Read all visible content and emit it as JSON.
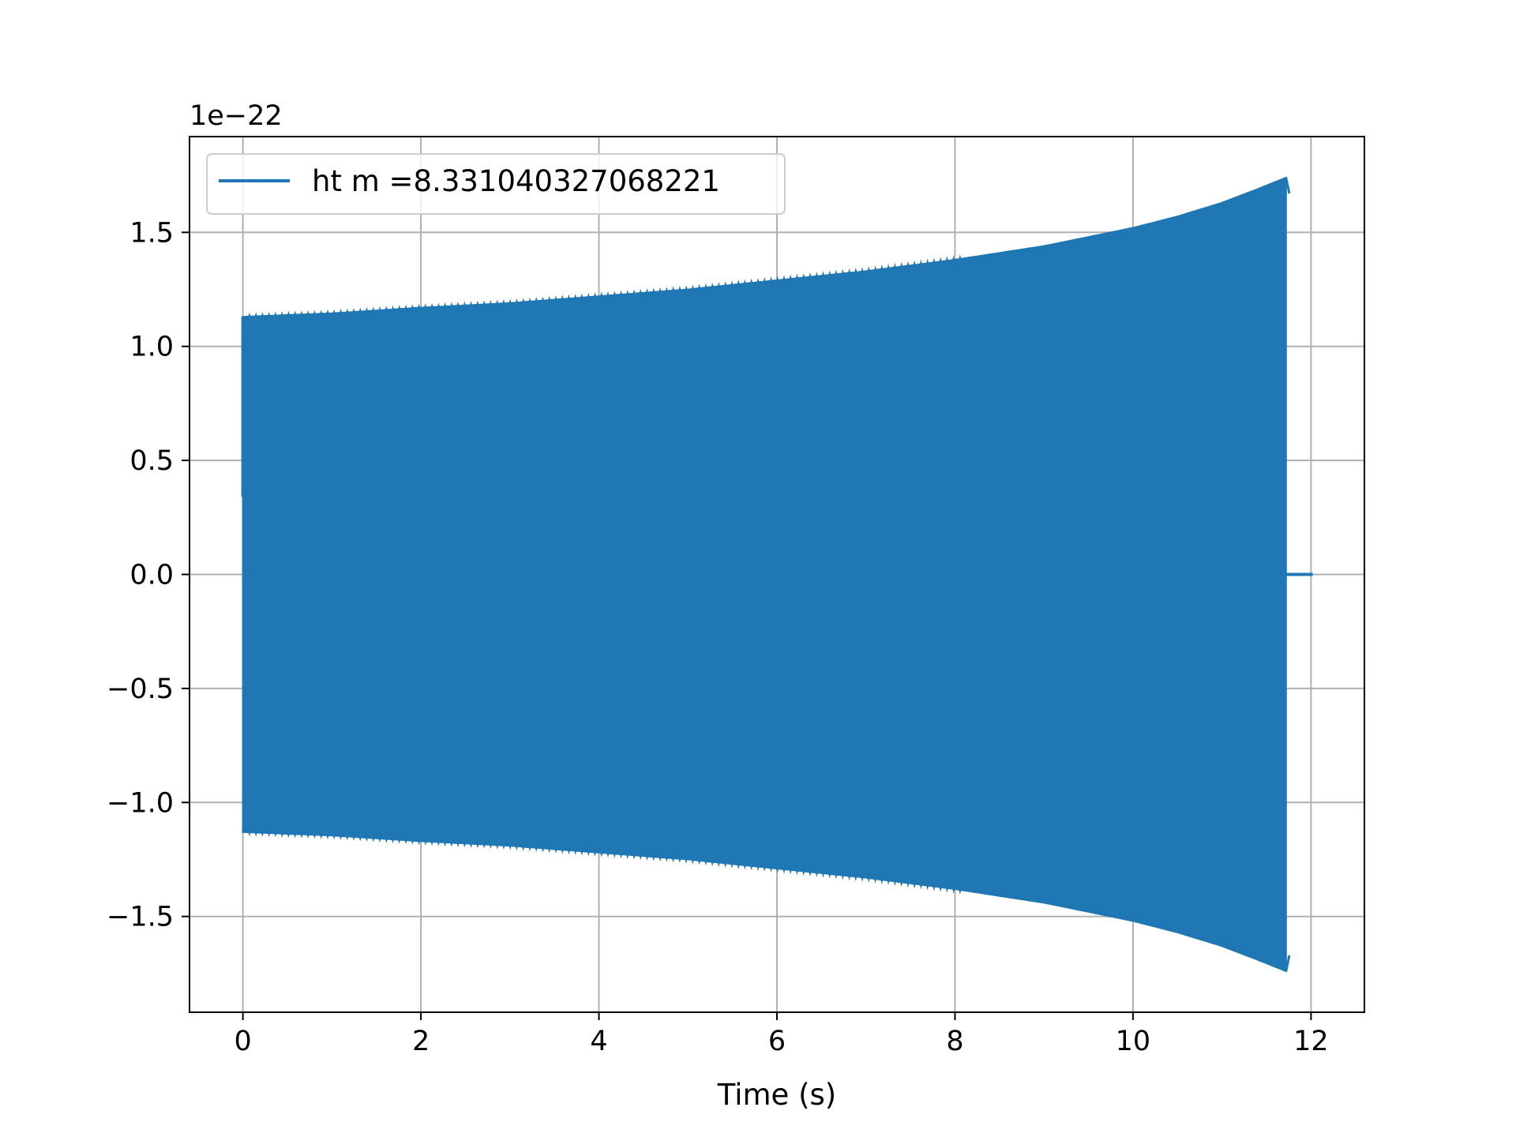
{
  "chart_data": {
    "type": "line",
    "title": "",
    "xlabel": "Time (s)",
    "ylabel": "",
    "offset_text": "1e−22",
    "xlim": [
      -0.6,
      12.6
    ],
    "ylim": [
      -1.92,
      1.92
    ],
    "xticks": [
      0,
      2,
      4,
      6,
      8,
      10,
      12
    ],
    "xtick_labels": [
      "0",
      "2",
      "4",
      "6",
      "8",
      "10",
      "12"
    ],
    "yticks": [
      -1.5,
      -1.0,
      -0.5,
      0.0,
      0.5,
      1.0,
      1.5
    ],
    "ytick_labels": [
      "−1.5",
      "−1.0",
      "−0.5",
      "0.0",
      "0.5",
      "1.0",
      "1.5"
    ],
    "grid": true,
    "legend_position": "upper-left",
    "color": "#1f77b4",
    "series": [
      {
        "name": "ht m =8.331040327068221",
        "description": "oscillating chirp; amplitude envelope (units of 1e-22)",
        "envelope_x": [
          0.0,
          1,
          2,
          3,
          4,
          5,
          6,
          7,
          8,
          9,
          10,
          10.5,
          11,
          11.4,
          11.72
        ],
        "envelope_amplitude": [
          1.13,
          1.145,
          1.17,
          1.19,
          1.22,
          1.25,
          1.29,
          1.33,
          1.38,
          1.44,
          1.52,
          1.57,
          1.63,
          1.69,
          1.74
        ],
        "start_value": 0.34,
        "end_time": 11.72,
        "tail_x": [
          11.72,
          12.02
        ],
        "tail_value": 0.0
      }
    ]
  }
}
